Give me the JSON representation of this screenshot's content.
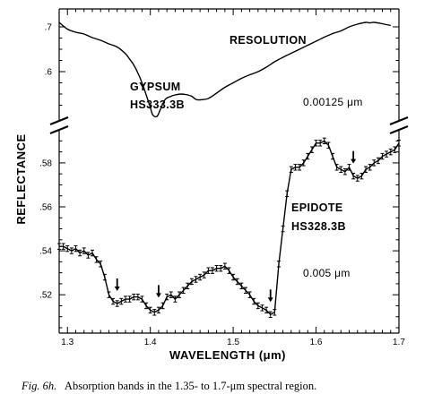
{
  "chart_data": {
    "type": "line",
    "xlabel": "WAVELENGTH (μm)",
    "ylabel": "REFLECTANCE",
    "xlim": [
      1.29,
      1.7
    ],
    "x_ticks": [
      1.3,
      1.4,
      1.5,
      1.6,
      1.7
    ],
    "x_tick_labels": [
      "1.3",
      "1.4",
      "1.5",
      "1.6",
      "1.7"
    ],
    "upper_panel": {
      "ylim": [
        0.5,
        0.72
      ],
      "y_ticks": [
        0.6,
        0.7
      ],
      "y_tick_labels": [
        ".6",
        ".7"
      ]
    },
    "lower_panel": {
      "ylim": [
        0.505,
        0.593
      ],
      "y_ticks": [
        0.52,
        0.54,
        0.56,
        0.58
      ],
      "y_tick_labels": [
        ".52",
        ".54",
        ".56",
        ".58"
      ]
    },
    "annotations": {
      "resolution_title": "RESOLUTION",
      "resolution_upper": "0.00125 μm",
      "resolution_lower": "0.005 μm"
    },
    "absorption_arrows_x": [
      1.36,
      1.41,
      1.545,
      1.645
    ],
    "series": [
      {
        "name_line1": "GYPSUM",
        "name_line2": "HS333.3B",
        "panel": "upper",
        "error_bars": false,
        "x": [
          1.29,
          1.3,
          1.31,
          1.32,
          1.33,
          1.34,
          1.35,
          1.36,
          1.37,
          1.375,
          1.38,
          1.385,
          1.39,
          1.395,
          1.4,
          1.403,
          1.408,
          1.412,
          1.418,
          1.425,
          1.43,
          1.437,
          1.445,
          1.45,
          1.455,
          1.46,
          1.47,
          1.48,
          1.49,
          1.5,
          1.51,
          1.52,
          1.53,
          1.54,
          1.55,
          1.56,
          1.57,
          1.58,
          1.59,
          1.6,
          1.61,
          1.62,
          1.63,
          1.64,
          1.65,
          1.66,
          1.665,
          1.67,
          1.68,
          1.69
        ],
        "y": [
          0.71,
          0.695,
          0.688,
          0.684,
          0.676,
          0.67,
          0.662,
          0.655,
          0.64,
          0.628,
          0.615,
          0.597,
          0.575,
          0.548,
          0.52,
          0.503,
          0.5,
          0.515,
          0.538,
          0.545,
          0.548,
          0.55,
          0.548,
          0.545,
          0.538,
          0.537,
          0.54,
          0.552,
          0.565,
          0.575,
          0.585,
          0.593,
          0.6,
          0.61,
          0.622,
          0.632,
          0.641,
          0.65,
          0.659,
          0.668,
          0.677,
          0.685,
          0.691,
          0.7,
          0.706,
          0.71,
          0.709,
          0.71,
          0.707,
          0.703
        ]
      },
      {
        "name_line1": "EPIDOTE",
        "name_line2": "HS328.3B",
        "panel": "lower",
        "error_bars": true,
        "x": [
          1.29,
          1.295,
          1.3,
          1.305,
          1.31,
          1.315,
          1.32,
          1.325,
          1.33,
          1.335,
          1.34,
          1.345,
          1.35,
          1.355,
          1.36,
          1.365,
          1.37,
          1.375,
          1.38,
          1.385,
          1.39,
          1.395,
          1.4,
          1.405,
          1.41,
          1.415,
          1.42,
          1.425,
          1.43,
          1.435,
          1.44,
          1.445,
          1.45,
          1.455,
          1.46,
          1.465,
          1.47,
          1.475,
          1.48,
          1.485,
          1.49,
          1.495,
          1.5,
          1.505,
          1.51,
          1.515,
          1.52,
          1.525,
          1.53,
          1.535,
          1.54,
          1.545,
          1.55,
          1.555,
          1.56,
          1.565,
          1.57,
          1.575,
          1.58,
          1.585,
          1.59,
          1.595,
          1.6,
          1.605,
          1.61,
          1.615,
          1.62,
          1.625,
          1.63,
          1.635,
          1.64,
          1.645,
          1.65,
          1.655,
          1.66,
          1.665,
          1.67,
          1.675,
          1.68,
          1.685,
          1.69,
          1.695,
          1.7
        ],
        "y": [
          0.542,
          0.542,
          0.541,
          0.54,
          0.541,
          0.539,
          0.54,
          0.538,
          0.539,
          0.536,
          0.534,
          0.528,
          0.52,
          0.517,
          0.516,
          0.517,
          0.518,
          0.518,
          0.519,
          0.519,
          0.518,
          0.515,
          0.513,
          0.512,
          0.513,
          0.515,
          0.519,
          0.52,
          0.518,
          0.52,
          0.522,
          0.524,
          0.526,
          0.527,
          0.528,
          0.529,
          0.531,
          0.531,
          0.532,
          0.532,
          0.533,
          0.531,
          0.528,
          0.526,
          0.524,
          0.522,
          0.52,
          0.517,
          0.515,
          0.514,
          0.513,
          0.511,
          0.512,
          0.534,
          0.55,
          0.566,
          0.577,
          0.578,
          0.578,
          0.58,
          0.583,
          0.586,
          0.589,
          0.589,
          0.59,
          0.588,
          0.583,
          0.578,
          0.577,
          0.576,
          0.578,
          0.574,
          0.573,
          0.574,
          0.577,
          0.578,
          0.58,
          0.581,
          0.583,
          0.584,
          0.585,
          0.586,
          0.589
        ]
      }
    ]
  },
  "caption": {
    "fig_ref": "Fig. 6h.",
    "text": "Absorption bands in the 1.35- to 1.7-μm spectral region."
  }
}
